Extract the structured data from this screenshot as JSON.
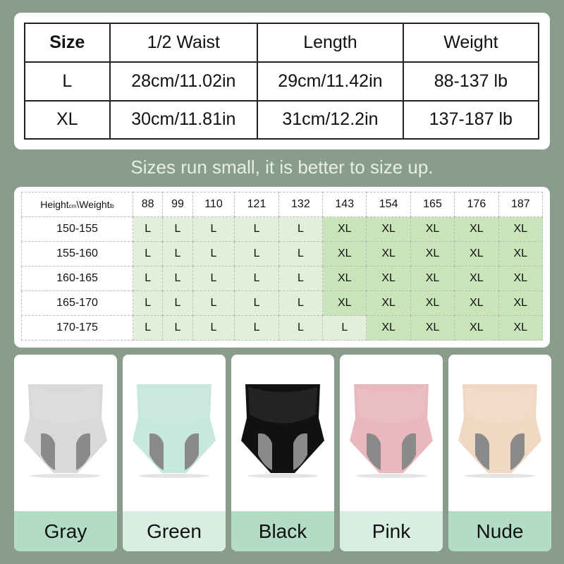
{
  "size_table": {
    "headers": [
      "Size",
      "1/2 Waist",
      "Length",
      "Weight"
    ],
    "rows": [
      [
        "L",
        "28cm/11.02in",
        "29cm/11.42in",
        "88-137 lb"
      ],
      [
        "XL",
        "30cm/11.81in",
        "31cm/12.2in",
        "137-187 lb"
      ]
    ]
  },
  "tagline": "Sizes run small, it is better to size up.",
  "fit_table": {
    "corner": {
      "height": "Height",
      "height_unit": "cm",
      "sep": "\\Weight",
      "weight_unit": "lb"
    },
    "weights": [
      "88",
      "99",
      "110",
      "121",
      "132",
      "143",
      "154",
      "165",
      "176",
      "187"
    ],
    "rows": [
      {
        "height": "150-155",
        "sizes": [
          "L",
          "L",
          "L",
          "L",
          "L",
          "XL",
          "XL",
          "XL",
          "XL",
          "XL"
        ]
      },
      {
        "height": "155-160",
        "sizes": [
          "L",
          "L",
          "L",
          "L",
          "L",
          "XL",
          "XL",
          "XL",
          "XL",
          "XL"
        ]
      },
      {
        "height": "160-165",
        "sizes": [
          "L",
          "L",
          "L",
          "L",
          "L",
          "XL",
          "XL",
          "XL",
          "XL",
          "XL"
        ]
      },
      {
        "height": "165-170",
        "sizes": [
          "L",
          "L",
          "L",
          "L",
          "L",
          "XL",
          "XL",
          "XL",
          "XL",
          "XL"
        ]
      },
      {
        "height": "170-175",
        "sizes": [
          "L",
          "L",
          "L",
          "L",
          "L",
          "L",
          "XL",
          "XL",
          "XL",
          "XL"
        ]
      }
    ]
  },
  "colors": [
    {
      "name": "Gray",
      "fabric": "#d9d9dc",
      "label_bg": "#b2dcc5"
    },
    {
      "name": "Green",
      "fabric": "#c7e8dc",
      "label_bg": "#d9eee3"
    },
    {
      "name": "Black",
      "fabric": "#111111",
      "label_bg": "#b2dcc5"
    },
    {
      "name": "Pink",
      "fabric": "#e9b8bd",
      "label_bg": "#d9eee3"
    },
    {
      "name": "Nude",
      "fabric": "#f1d8c3",
      "label_bg": "#b2dcc5"
    }
  ]
}
